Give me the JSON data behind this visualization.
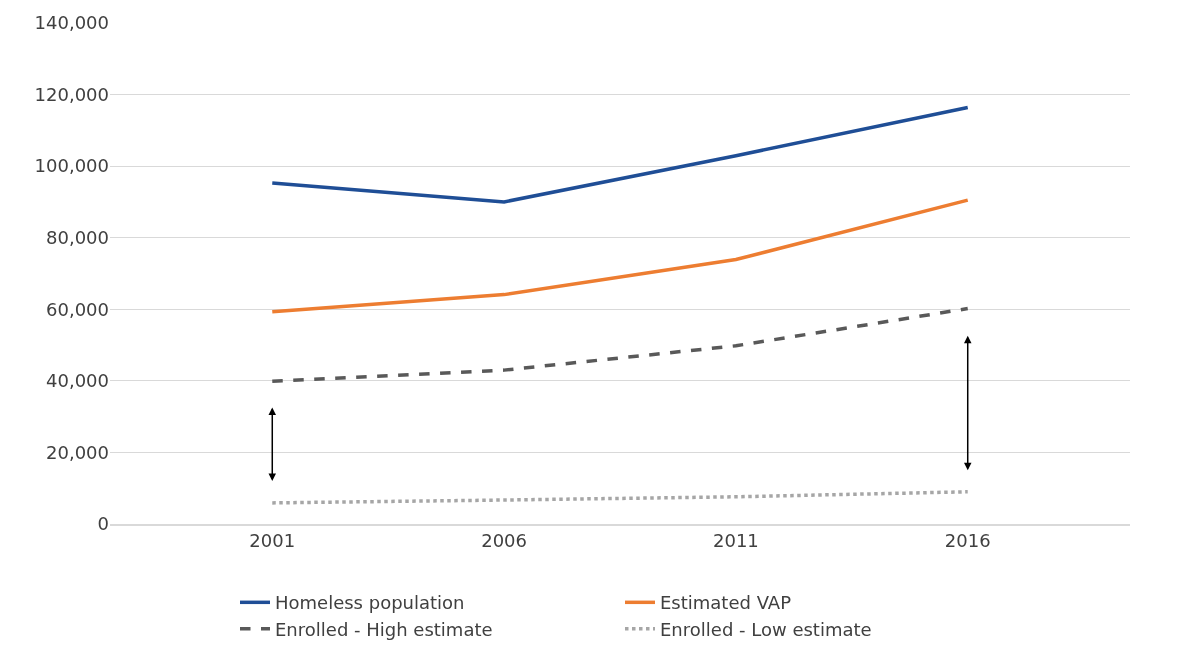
{
  "chart_data": {
    "type": "line",
    "categories": [
      "2001",
      "2006",
      "2011",
      "2016"
    ],
    "series": [
      {
        "name": "Homeless population",
        "color": "#1f4e96",
        "values": [
          95300,
          90000,
          102900,
          116400
        ]
      },
      {
        "name": "Estimated VAP",
        "color": "#ed7d31",
        "values": [
          59300,
          64100,
          73900,
          90500
        ]
      },
      {
        "name": "Enrolled - High estimate",
        "color": "#595959",
        "values": [
          39900,
          43000,
          49800,
          60200
        ],
        "line_style": "dashed"
      },
      {
        "name": "Enrolled - Low estimate",
        "color": "#a6a6a6",
        "values": [
          5900,
          6700,
          7600,
          9000
        ],
        "line_style": "dotted"
      }
    ],
    "ylim": [
      0,
      140000
    ],
    "yticks": [
      {
        "value": 0,
        "label": "0"
      },
      {
        "value": 20000,
        "label": "20,000"
      },
      {
        "value": 40000,
        "label": "40,000"
      },
      {
        "value": 60000,
        "label": "60,000"
      },
      {
        "value": 80000,
        "label": "80,000"
      },
      {
        "value": 100000,
        "label": "100,000"
      },
      {
        "value": 120000,
        "label": "120,000"
      },
      {
        "value": 140000,
        "label": "140,000"
      }
    ],
    "grid": "y",
    "legend": "bottom",
    "marker": "none"
  }
}
